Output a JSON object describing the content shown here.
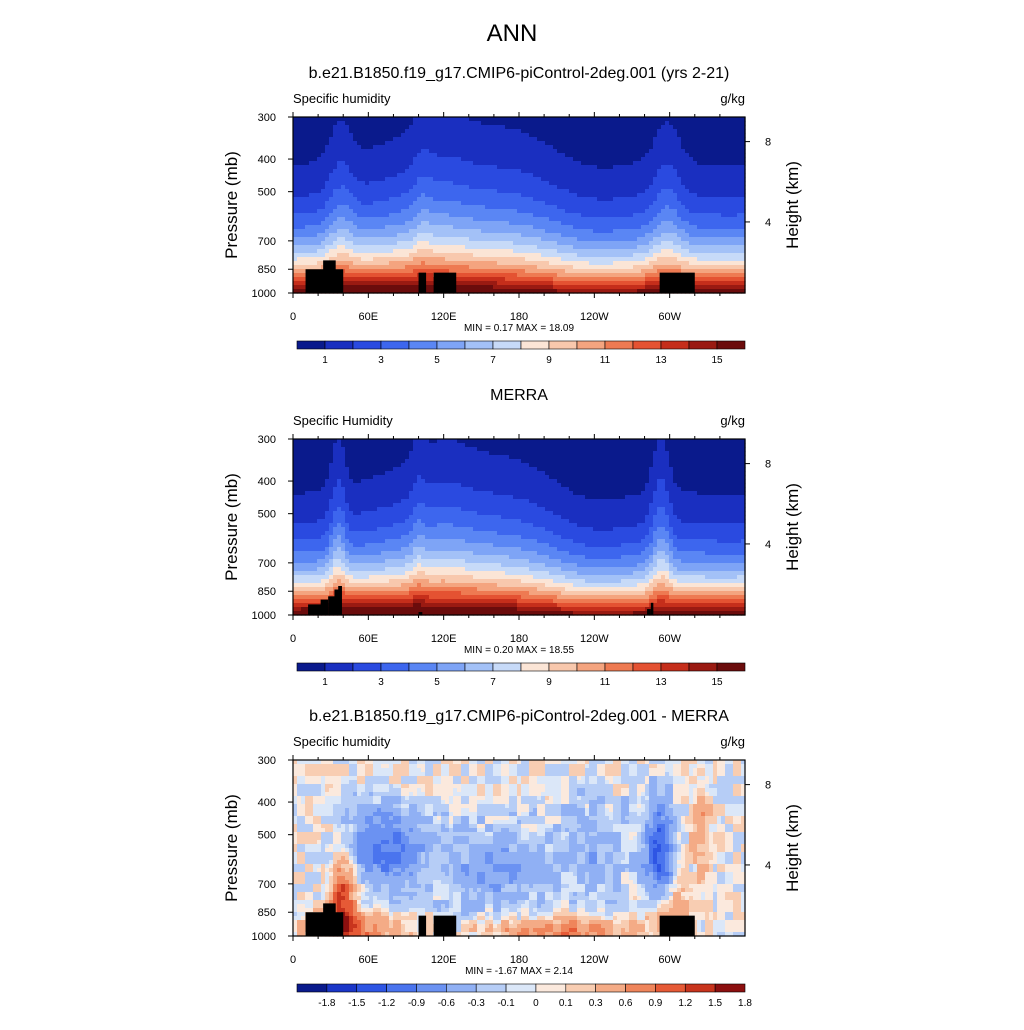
{
  "main_title": "ANN",
  "colors": {
    "seq_palette": [
      "#0a1a8c",
      "#1a2fc0",
      "#2a4ae0",
      "#3d66ee",
      "#5a86f4",
      "#7ea4f6",
      "#a3c1f7",
      "#c7daf8",
      "#fbe5d6",
      "#f8c8ad",
      "#f4a47f",
      "#ee7a52",
      "#e45232",
      "#c52e1b",
      "#9a1a12",
      "#6b0c0c"
    ],
    "diff_palette": [
      "#0a1a8c",
      "#1a36c8",
      "#2e55e4",
      "#4a74ee",
      "#6b92f2",
      "#90b0f4",
      "#b6cdf6",
      "#dbe7f8",
      "#fbe9dd",
      "#f8cdb2",
      "#f4ab86",
      "#ef855b",
      "#e65a36",
      "#c8341d",
      "#8c0f0f"
    ],
    "land": "#000000"
  },
  "chart_data": [
    {
      "type": "heatmap",
      "title": "b.e21.B1850.f19_g17.CMIP6-piControl-2deg.001 (yrs 2-21)",
      "left_label": "Specific humidity",
      "right_label": "g/kg",
      "ylabel": "Pressure (mb)",
      "y2label": "Height (km)",
      "xticks": [
        "0",
        "60E",
        "120E",
        "180",
        "120W",
        "60W"
      ],
      "yticks": [
        "300",
        "400",
        "500",
        "700",
        "850",
        "1000"
      ],
      "y2ticks": [
        "8",
        "4"
      ],
      "stats": "MIN =   0.17  MAX =  18.09",
      "x_range": [
        0,
        360
      ],
      "y_range_mb": [
        1000,
        300
      ],
      "colorbar_labels": [
        "1",
        "3",
        "5",
        "7",
        "9",
        "11",
        "13",
        "15"
      ],
      "field": "model"
    },
    {
      "type": "heatmap",
      "title": "MERRA",
      "left_label": "Specific Humidity",
      "right_label": "g/kg",
      "ylabel": "Pressure (mb)",
      "y2label": "Height (km)",
      "xticks": [
        "0",
        "60E",
        "120E",
        "180",
        "120W",
        "60W"
      ],
      "yticks": [
        "300",
        "400",
        "500",
        "700",
        "850",
        "1000"
      ],
      "y2ticks": [
        "8",
        "4"
      ],
      "stats": "MIN =   0.20  MAX =  18.55",
      "x_range": [
        0,
        360
      ],
      "y_range_mb": [
        1000,
        300
      ],
      "colorbar_labels": [
        "1",
        "3",
        "5",
        "7",
        "9",
        "11",
        "13",
        "15"
      ],
      "field": "obs"
    },
    {
      "type": "heatmap",
      "title": "b.e21.B1850.f19_g17.CMIP6-piControl-2deg.001 - MERRA",
      "left_label": "Specific humidity",
      "right_label": "g/kg",
      "ylabel": "Pressure (mb)",
      "y2label": "Height (km)",
      "xticks": [
        "0",
        "60E",
        "120E",
        "180",
        "120W",
        "60W"
      ],
      "yticks": [
        "300",
        "400",
        "500",
        "700",
        "850",
        "1000"
      ],
      "y2ticks": [
        "8",
        "4"
      ],
      "stats": "MIN =  -1.67  MAX =   2.14",
      "x_range": [
        0,
        360
      ],
      "y_range_mb": [
        1000,
        300
      ],
      "colorbar_labels": [
        "-1.8",
        "-1.5",
        "-1.2",
        "-0.9",
        "-0.6",
        "-0.3",
        "-0.1",
        "0",
        "0.1",
        "0.3",
        "0.6",
        "0.9",
        "1.2",
        "1.5",
        "1.8"
      ],
      "field": "diff"
    }
  ]
}
